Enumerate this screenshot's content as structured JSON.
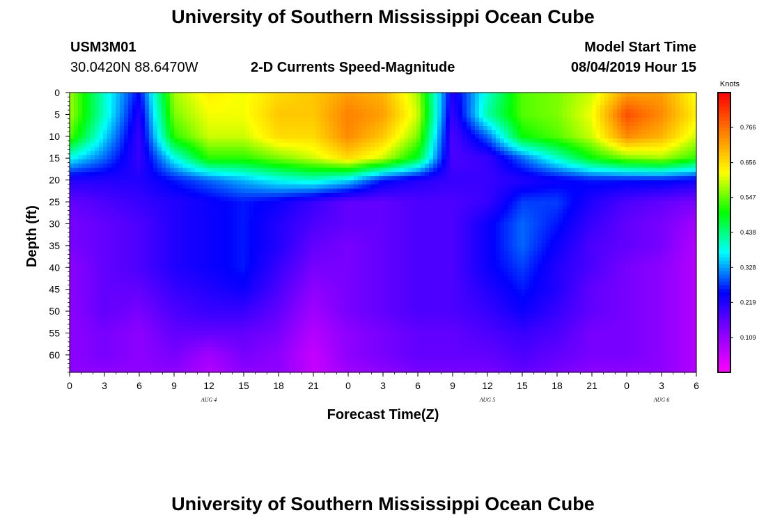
{
  "header": {
    "title": "University of Southern Mississippi Ocean Cube",
    "station_id": "USM3M01",
    "coordinates": "30.0420N 88.6470W",
    "plot_title": "2-D Currents Speed-Magnitude",
    "model_start_label": "Model Start Time",
    "model_start_value": "08/04/2019 Hour 15"
  },
  "footer": {
    "title": "University of Southern Mississippi Ocean Cube"
  },
  "chart_data": {
    "type": "heatmap",
    "xlabel": "Forecast Time(Z)",
    "ylabel": "Depth (ft)",
    "x_tick_labels": [
      "0",
      "3",
      "6",
      "9",
      "12",
      "15",
      "18",
      "21",
      "0",
      "3",
      "6",
      "9",
      "12",
      "15",
      "18",
      "21",
      "0",
      "3",
      "6"
    ],
    "date_labels": [
      {
        "text": "AUG 4",
        "hours_from_start": 12
      },
      {
        "text": "AUG 5",
        "hours_from_start": 36
      },
      {
        "text": "AUG 6",
        "hours_from_start": 51
      }
    ],
    "x_hours_range": [
      0,
      54
    ],
    "y_tick_labels": [
      "0",
      "5",
      "10",
      "15",
      "20",
      "25",
      "30",
      "35",
      "40",
      "45",
      "50",
      "55",
      "60"
    ],
    "ylim_ft": [
      0,
      64
    ],
    "colorbar": {
      "unit": "Knots",
      "labels": [
        "0.766",
        "0.656",
        "0.547",
        "0.438",
        "0.328",
        "0.219",
        "0.109"
      ],
      "range": [
        0.0,
        0.875
      ],
      "colors": [
        "#ff00ff",
        "#8800ff",
        "#0000ff",
        "#00ffff",
        "#00ff00",
        "#ffff00",
        "#ff8000",
        "#ff0000"
      ]
    },
    "depth_levels_ft": [
      0,
      5,
      10,
      15,
      20,
      25,
      30,
      35,
      40,
      45,
      50,
      55,
      60,
      64
    ],
    "time_hours": [
      0,
      3,
      6,
      9,
      12,
      15,
      18,
      21,
      24,
      27,
      30,
      33,
      36,
      39,
      42,
      45,
      48,
      51,
      54
    ],
    "speed_knots": [
      [
        0.58,
        0.4,
        0.25,
        0.58,
        0.64,
        0.62,
        0.66,
        0.68,
        0.72,
        0.7,
        0.58,
        0.22,
        0.4,
        0.54,
        0.56,
        0.6,
        0.72,
        0.72,
        0.62
      ],
      [
        0.58,
        0.4,
        0.22,
        0.56,
        0.62,
        0.62,
        0.68,
        0.68,
        0.75,
        0.72,
        0.6,
        0.2,
        0.42,
        0.54,
        0.56,
        0.62,
        0.8,
        0.74,
        0.64
      ],
      [
        0.54,
        0.36,
        0.2,
        0.52,
        0.6,
        0.6,
        0.66,
        0.66,
        0.74,
        0.68,
        0.56,
        0.18,
        0.3,
        0.5,
        0.54,
        0.6,
        0.74,
        0.7,
        0.6
      ],
      [
        0.38,
        0.3,
        0.2,
        0.38,
        0.52,
        0.52,
        0.56,
        0.6,
        0.66,
        0.6,
        0.48,
        0.18,
        0.2,
        0.3,
        0.4,
        0.5,
        0.56,
        0.58,
        0.52
      ],
      [
        0.22,
        0.22,
        0.22,
        0.26,
        0.3,
        0.34,
        0.38,
        0.4,
        0.36,
        0.26,
        0.22,
        0.2,
        0.2,
        0.22,
        0.24,
        0.26,
        0.26,
        0.26,
        0.24
      ],
      [
        0.16,
        0.18,
        0.2,
        0.22,
        0.24,
        0.26,
        0.24,
        0.2,
        0.16,
        0.16,
        0.18,
        0.18,
        0.2,
        0.28,
        0.28,
        0.22,
        0.18,
        0.16,
        0.14
      ],
      [
        0.14,
        0.16,
        0.18,
        0.22,
        0.24,
        0.26,
        0.22,
        0.18,
        0.16,
        0.16,
        0.18,
        0.18,
        0.24,
        0.3,
        0.26,
        0.2,
        0.16,
        0.14,
        0.1
      ],
      [
        0.14,
        0.16,
        0.18,
        0.22,
        0.24,
        0.26,
        0.22,
        0.16,
        0.14,
        0.16,
        0.18,
        0.18,
        0.24,
        0.3,
        0.24,
        0.18,
        0.16,
        0.14,
        0.08
      ],
      [
        0.12,
        0.16,
        0.18,
        0.22,
        0.24,
        0.26,
        0.2,
        0.14,
        0.14,
        0.16,
        0.18,
        0.18,
        0.24,
        0.28,
        0.22,
        0.18,
        0.14,
        0.12,
        0.08
      ],
      [
        0.12,
        0.16,
        0.16,
        0.2,
        0.22,
        0.24,
        0.18,
        0.12,
        0.14,
        0.16,
        0.18,
        0.18,
        0.22,
        0.26,
        0.22,
        0.16,
        0.14,
        0.12,
        0.08
      ],
      [
        0.12,
        0.16,
        0.14,
        0.18,
        0.2,
        0.2,
        0.16,
        0.1,
        0.14,
        0.16,
        0.18,
        0.18,
        0.2,
        0.24,
        0.2,
        0.16,
        0.14,
        0.12,
        0.08
      ],
      [
        0.12,
        0.14,
        0.12,
        0.16,
        0.16,
        0.16,
        0.14,
        0.08,
        0.12,
        0.14,
        0.16,
        0.16,
        0.18,
        0.2,
        0.18,
        0.14,
        0.14,
        0.12,
        0.08
      ],
      [
        0.12,
        0.14,
        0.12,
        0.14,
        0.1,
        0.14,
        0.12,
        0.06,
        0.12,
        0.14,
        0.16,
        0.16,
        0.16,
        0.18,
        0.16,
        0.14,
        0.14,
        0.12,
        0.08
      ],
      [
        0.12,
        0.12,
        0.12,
        0.12,
        0.08,
        0.12,
        0.12,
        0.06,
        0.1,
        0.12,
        0.14,
        0.14,
        0.14,
        0.16,
        0.14,
        0.12,
        0.12,
        0.12,
        0.08
      ]
    ]
  }
}
